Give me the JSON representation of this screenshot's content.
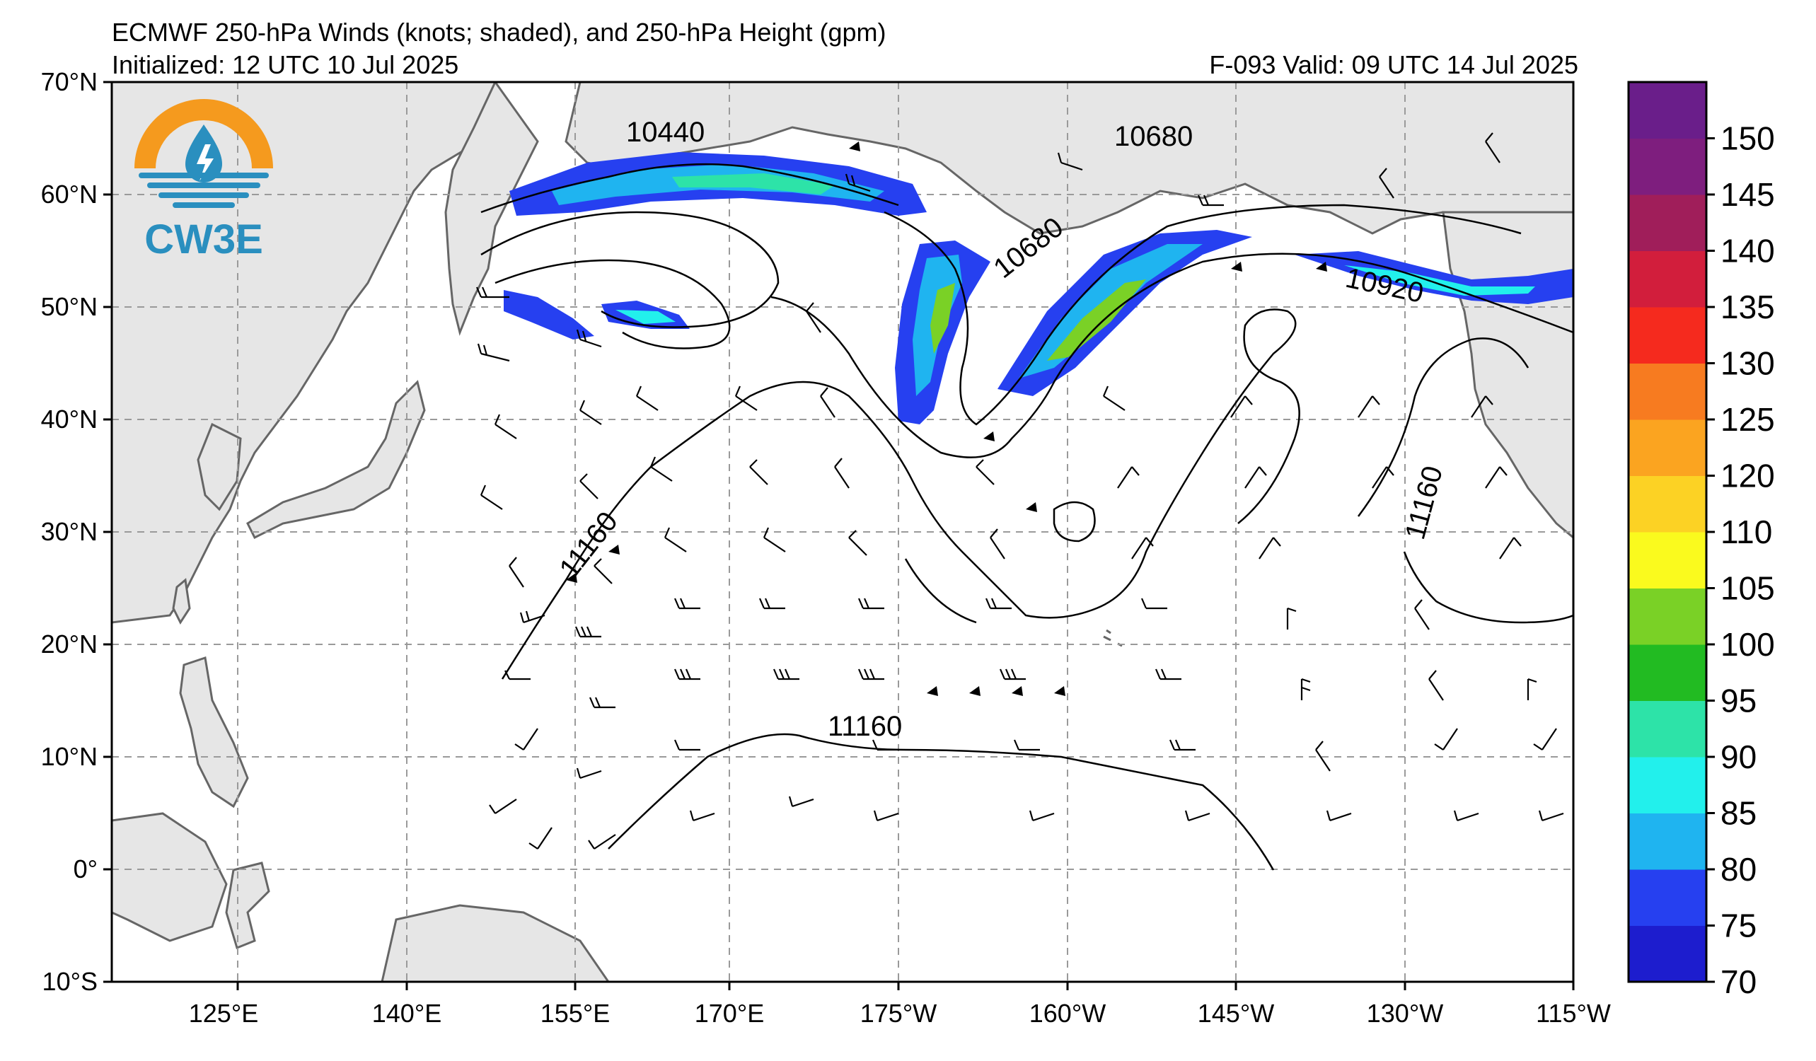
{
  "header": {
    "title": "ECMWF 250-hPa Winds (knots; shaded), and 250-hPa Height (gpm)",
    "initialized": "Initialized: 12 UTC 10 Jul 2025",
    "valid": "F-093  Valid: 09 UTC 14 Jul 2025"
  },
  "logo": {
    "text": "CW3E",
    "color_orange": "#f59a1e",
    "color_blue": "#2a8fbf"
  },
  "map": {
    "lat_labels": [
      "70°N",
      "60°N",
      "50°N",
      "40°N",
      "30°N",
      "20°N",
      "10°N",
      "0°",
      "10°S"
    ],
    "lon_labels": [
      "125°E",
      "140°E",
      "155°E",
      "170°E",
      "175°W",
      "160°W",
      "145°W",
      "130°W",
      "115°W"
    ],
    "land_color": "#e6e6e6",
    "coast_color": "#666666",
    "gridline_color": "#9a9a9a"
  },
  "contours": {
    "labels": [
      {
        "text": "10440",
        "rotate": 0
      },
      {
        "text": "10680",
        "rotate": 0
      },
      {
        "text": "10680",
        "rotate": -38
      },
      {
        "text": "10920",
        "rotate": 12
      },
      {
        "text": "11160",
        "rotate": -52
      },
      {
        "text": "11160",
        "rotate": -75
      },
      {
        "text": "11160",
        "rotate": 0
      }
    ]
  },
  "colorbar": {
    "levels": [
      70,
      75,
      80,
      85,
      90,
      95,
      100,
      105,
      110,
      120,
      125,
      130,
      135,
      140,
      145,
      150
    ],
    "labels": [
      "70",
      "75",
      "80",
      "85",
      "90",
      "95",
      "100",
      "105",
      "110",
      "120",
      "125",
      "130",
      "135",
      "140",
      "145",
      "150"
    ],
    "colors": [
      "#1d1dce",
      "#2640f0",
      "#1fb4f0",
      "#22f0ec",
      "#2de3a8",
      "#22bb22",
      "#7ad126",
      "#fafa1e",
      "#fcd224",
      "#fba420",
      "#f77b20",
      "#f52a1e",
      "#d21e3c",
      "#a01e5a",
      "#7e1e7e",
      "#6a1e8a"
    ]
  }
}
